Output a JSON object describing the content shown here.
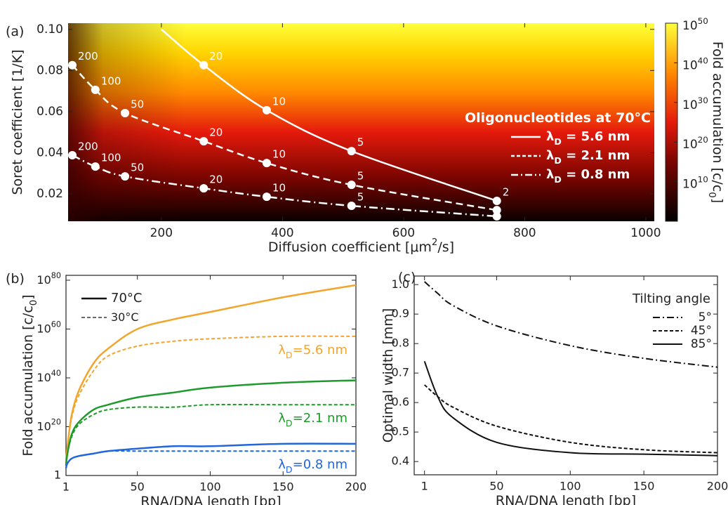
{
  "chart_data": [
    {
      "type": "heatmap",
      "panel_label": "(a)",
      "xlabel": "Diffusion coefficient [μm^{2}/s]",
      "ylabel": "Soret coefficient [1/K]",
      "xlim": [
        46,
        1014
      ],
      "ylim": [
        0.0067,
        0.103
      ],
      "xticks": [
        200,
        400,
        600,
        800,
        1000
      ],
      "yticks": [
        0.02,
        0.04,
        0.06,
        0.08,
        {
          "value": 0.1,
          "label": "0.10"
        }
      ],
      "colorbar": {
        "label": "Fold accumulation [c/c_{0}]",
        "scale": "log",
        "lim": [
          1,
          1e+50
        ],
        "ticks": [
          {
            "value": 10000000000.0,
            "label": "10^{10}"
          },
          {
            "value": 1e+20,
            "label": "10^{20}"
          },
          {
            "value": 1e+30,
            "label": "10^{30}"
          },
          {
            "value": 1e+40,
            "label": "10^{40}"
          },
          {
            "value": 1e+50,
            "label": "10^{50}"
          }
        ]
      },
      "legend": "right",
      "legend_title": "Oligonucleotides at 70°C",
      "series": [
        {
          "name": "λ_{D} = 5.6 nm",
          "color": "#ffffff",
          "dash": "solid",
          "x": [
            200,
            270,
            374,
            514,
            754
          ],
          "values": [
            0.1,
            0.0826,
            0.0607,
            0.0408,
            0.0166
          ],
          "markers": [
            false,
            true,
            true,
            true,
            true
          ],
          "point_labels": [
            null,
            20,
            10,
            5,
            2
          ]
        },
        {
          "name": "λ_{D} = 2.1 nm",
          "color": "#ffffff",
          "dash": "dashed",
          "x": [
            53,
            91,
            140,
            270,
            374,
            514,
            754
          ],
          "values": [
            0.0826,
            0.0706,
            0.0593,
            0.0456,
            0.035,
            0.0244,
            0.0121
          ],
          "point_labels": [
            200,
            100,
            50,
            20,
            10,
            5,
            null
          ]
        },
        {
          "name": "λ_{D} = 0.8 nm",
          "color": "#ffffff",
          "dash": "dashdot",
          "x": [
            53,
            91,
            140,
            270,
            374,
            514,
            754
          ],
          "values": [
            0.0388,
            0.0333,
            0.0285,
            0.0227,
            0.0186,
            0.0142,
            0.0091
          ],
          "point_labels": [
            200,
            100,
            50,
            20,
            10,
            5,
            null
          ]
        }
      ]
    },
    {
      "type": "line",
      "panel_label": "(b)",
      "yscale": "log",
      "xlabel": "RNA/DNA length [bp]",
      "ylabel": "Fold accumulation [c/c_{0}]",
      "xlim": [
        1,
        200
      ],
      "ylim": [
        1,
        1e+82
      ],
      "xticks": [
        1,
        50,
        100,
        150,
        200
      ],
      "yticks": [
        1,
        {
          "value": 1e+20,
          "label": "10^{20}"
        },
        {
          "value": 1e+40,
          "label": "10^{40}"
        },
        {
          "value": 1e+60,
          "label": "10^{60}"
        },
        {
          "value": 1e+80,
          "label": "10^{80}"
        }
      ],
      "legend": "upper left",
      "legend_entries": [
        {
          "name": "70°C",
          "dash": "solid"
        },
        {
          "name": "30°C",
          "dash": "dashed"
        }
      ],
      "x": [
        1,
        2,
        5,
        10,
        20,
        30,
        50,
        75,
        100,
        150,
        200
      ],
      "groups": [
        {
          "label": "λ_{D}=5.6 nm",
          "color": "#f2a52a",
          "series": [
            {
              "dash": "solid",
              "values": [
                100000.0,
                1000000000000.0,
                1e+25,
                1e+35,
                1e+46,
                1e+52,
                1e+60,
                1e+64,
                1e+67,
                1e+73,
                1e+78
              ]
            },
            {
              "dash": "dashed",
              "values": [
                100000.0,
                1000000000000.0,
                1e+24,
                1e+33,
                1e+43,
                1e+49,
                1e+53,
                1e+55,
                1e+56,
                1e+57,
                1e+57
              ]
            }
          ]
        },
        {
          "label": "λ_{D}=2.1 nm",
          "color": "#1f9a2c",
          "series": [
            {
              "dash": "solid",
              "values": [
                10000.0,
                1000000000.0,
                1e+17,
                1e+22,
                1e+27,
                1e+29,
                1e+32,
                1e+34,
                1e+36,
                1e+38,
                1e+39
              ]
            },
            {
              "dash": "dashed",
              "values": [
                10000.0,
                1000000000.0,
                1e+16,
                1e+21,
                1e+25,
                1e+27,
                1e+28,
                1e+28,
                1e+29,
                1e+29,
                1e+29
              ]
            }
          ]
        },
        {
          "label": "λ_{D}=0.8 nm",
          "color": "#2266dd",
          "series": [
            {
              "dash": "solid",
              "values": [
                1000.0,
                100000.0,
                10000000.0,
                100000000.0,
                1000000000.0,
                10000000000.0,
                100000000000.0,
                1000000000000.0,
                1000000000000.0,
                10000000000000.0,
                10000000000000.0
              ]
            },
            {
              "dash": "dashed",
              "values": [
                1000.0,
                100000.0,
                10000000.0,
                100000000.0,
                1000000000.0,
                10000000000.0,
                10000000000.0,
                10000000000.0,
                10000000000.0,
                10000000000.0,
                10000000000.0
              ]
            }
          ]
        }
      ]
    },
    {
      "type": "line",
      "panel_label": "(c)",
      "xlabel": "RNA/DNA length [bp]",
      "ylabel": "Optimal width [mm]",
      "xlim": [
        -6,
        200
      ],
      "ylim": [
        0.355,
        1.029
      ],
      "xticks": [
        1,
        50,
        100,
        150,
        200
      ],
      "yticks": [
        0.4,
        0.5,
        0.6,
        0.7,
        0.8,
        0.9,
        {
          "value": 1,
          "label": "1.0"
        }
      ],
      "legend": "upper right",
      "legend_title": "Tilting angle",
      "x": [
        1,
        10,
        20,
        50,
        100,
        150,
        200
      ],
      "series": [
        {
          "name": "5°",
          "color": "#111111",
          "dash": "dashdot",
          "values": [
            1.01,
            0.97,
            0.93,
            0.86,
            0.793,
            0.75,
            0.72
          ]
        },
        {
          "name": "45°",
          "color": "#111111",
          "dash": "dashed",
          "values": [
            0.66,
            0.62,
            0.585,
            0.52,
            0.465,
            0.44,
            0.43
          ]
        },
        {
          "name": "85°",
          "color": "#111111",
          "dash": "solid",
          "values": [
            0.74,
            0.62,
            0.55,
            0.465,
            0.43,
            0.425,
            0.42
          ]
        }
      ]
    }
  ]
}
